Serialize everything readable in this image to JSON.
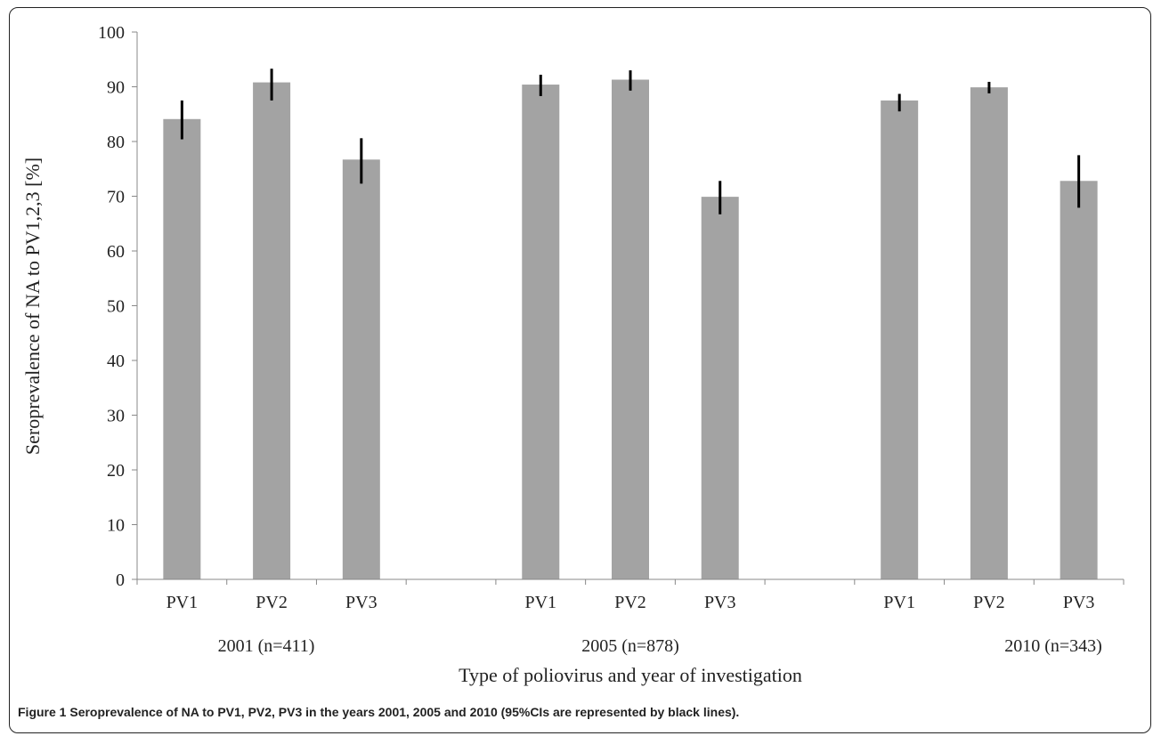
{
  "chart_data": {
    "type": "bar",
    "xlabel": "Type of poliovirus and year of investigation",
    "ylabel": "Seroprevalence of NA to PV1,2,3 [%]",
    "ylim": [
      0,
      100
    ],
    "yticks": [
      0,
      10,
      20,
      30,
      40,
      50,
      60,
      70,
      80,
      90,
      100
    ],
    "grid": false,
    "bar_color": "#a3a3a3",
    "error_bar_color": "#000000",
    "groups": [
      {
        "label": "2001 (n=411)",
        "categories": [
          "PV1",
          "PV2",
          "PV3"
        ],
        "values": [
          84.1,
          90.8,
          76.7
        ],
        "ci_low": [
          80.4,
          87.5,
          72.3
        ],
        "ci_high": [
          87.5,
          93.3,
          80.6
        ]
      },
      {
        "label": "2005 (n=878)",
        "categories": [
          "PV1",
          "PV2",
          "PV3"
        ],
        "values": [
          90.4,
          91.3,
          69.9
        ],
        "ci_low": [
          88.3,
          89.3,
          66.7
        ],
        "ci_high": [
          92.2,
          93.0,
          72.8
        ]
      },
      {
        "label": "2010 (n=343)",
        "categories": [
          "PV1",
          "PV2",
          "PV3"
        ],
        "values": [
          87.5,
          89.9,
          72.8
        ],
        "ci_low": [
          85.5,
          88.8,
          67.9
        ],
        "ci_high": [
          88.7,
          90.9,
          77.5
        ]
      }
    ]
  },
  "caption": {
    "figure_number": "Figure 1",
    "text": "Seroprevalence of NA to PV1, PV2, PV3 in the years 2001, 2005 and 2010 (95%CIs are represented by black lines)."
  }
}
